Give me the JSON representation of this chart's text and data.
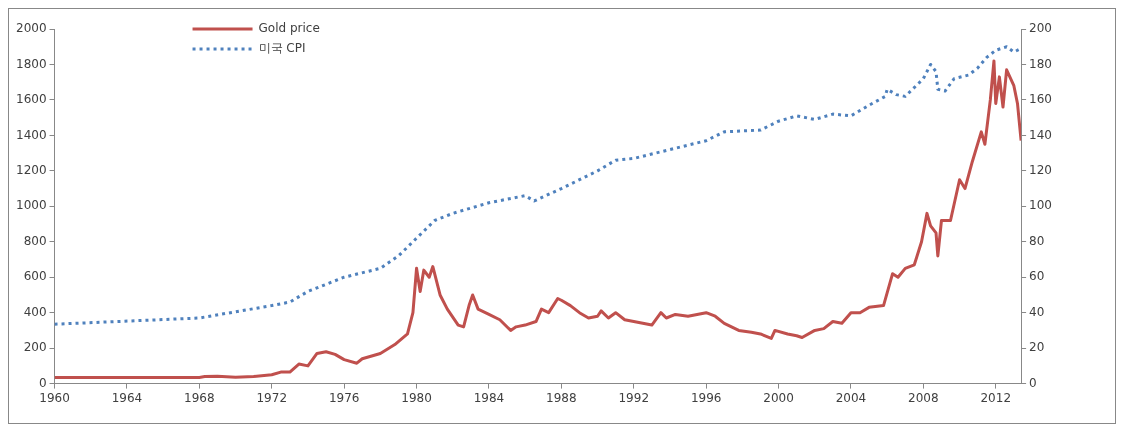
{
  "chart_data": {
    "type": "line",
    "xlim": [
      1960,
      2013.4
    ],
    "xticks": [
      1960,
      1964,
      1968,
      1972,
      1976,
      1980,
      1984,
      1988,
      1992,
      1996,
      2000,
      2004,
      2008,
      2012
    ],
    "ylim": [
      0,
      2000
    ],
    "yticks": [
      0,
      200,
      400,
      600,
      800,
      1000,
      1200,
      1400,
      1600,
      1800,
      2000
    ],
    "y2lim": [
      0,
      200
    ],
    "y2ticks": [
      0,
      20,
      40,
      60,
      80,
      100,
      120,
      140,
      160,
      180,
      200
    ],
    "grid": false,
    "legend": "top left",
    "marker": "none",
    "series": [
      {
        "name": "Gold price",
        "color": "#c0504d",
        "line_style": "solid",
        "x": [
          1960,
          1968,
          1968.3,
          1969,
          1970,
          1971,
          1972,
          1972.5,
          1973,
          1973.5,
          1974,
          1974.5,
          1975,
          1975.5,
          1976,
          1976.7,
          1977,
          1978,
          1978.8,
          1979.5,
          1979.8,
          1980.0,
          1980.2,
          1980.4,
          1980.7,
          1980.9,
          1981.3,
          1981.7,
          1982.3,
          1982.6,
          1982.9,
          1983.1,
          1983.4,
          1984,
          1984.6,
          1985.2,
          1985.5,
          1986,
          1986.6,
          1986.9,
          1987.3,
          1987.8,
          1988,
          1988.5,
          1989,
          1989.5,
          1990,
          1990.2,
          1990.6,
          1991,
          1991.5,
          1992,
          1992.5,
          1993,
          1993.5,
          1993.8,
          1994.3,
          1995,
          1996,
          1996.5,
          1997,
          1997.8,
          1998.5,
          1999,
          1999.6,
          1999.8,
          2000.5,
          2001,
          2001.3,
          2002,
          2002.5,
          2003,
          2003.5,
          2004,
          2004.5,
          2005,
          2005.8,
          2006.3,
          2006.6,
          2007,
          2007.5,
          2007.9,
          2008.2,
          2008.4,
          2008.7,
          2008.8,
          2009,
          2009.5,
          2010,
          2010.3,
          2010.7,
          2011.2,
          2011.4,
          2011.7,
          2011.9,
          2012.0,
          2012.2,
          2012.4,
          2012.6,
          2013.0,
          2013.2,
          2013.4
        ],
        "values": [
          35,
          35,
          40,
          42,
          36,
          40,
          50,
          65,
          65,
          110,
          100,
          170,
          180,
          165,
          135,
          115,
          140,
          170,
          220,
          280,
          400,
          650,
          520,
          640,
          600,
          660,
          500,
          420,
          330,
          320,
          440,
          500,
          420,
          390,
          360,
          300,
          320,
          330,
          350,
          420,
          400,
          480,
          470,
          440,
          400,
          370,
          380,
          410,
          370,
          400,
          360,
          350,
          340,
          330,
          400,
          370,
          390,
          380,
          400,
          380,
          340,
          300,
          290,
          280,
          255,
          300,
          280,
          270,
          260,
          300,
          310,
          350,
          340,
          400,
          400,
          430,
          440,
          620,
          600,
          650,
          670,
          800,
          960,
          890,
          850,
          720,
          920,
          920,
          1150,
          1100,
          1250,
          1420,
          1350,
          1600,
          1820,
          1580,
          1730,
          1560,
          1770,
          1680,
          1580,
          1370
        ]
      },
      {
        "name": "미국 CPI",
        "color": "#4f81bd",
        "line_style": "dotted",
        "axis": "y2",
        "x": [
          1960,
          1968,
          1972,
          1973,
          1974,
          1976,
          1978,
          1979,
          1980,
          1981,
          1982,
          1984,
          1986,
          1986.5,
          1988,
          1990,
          1991,
          1992,
          1994,
          1996,
          1997,
          1999,
          2000,
          2001,
          2002,
          2003,
          2004,
          2005,
          2005.9,
          2006,
          2006.5,
          2007,
          2008,
          2008.4,
          2008.7,
          2008.8,
          2009.2,
          2009.7,
          2010.5,
          2011,
          2011.5,
          2012.0,
          2012.6,
          2013.0,
          2013.4
        ],
        "values": [
          33.5,
          37,
          44,
          46,
          52,
          60,
          65,
          72,
          82,
          92,
          96,
          102,
          106,
          103,
          110,
          120,
          126,
          127,
          132,
          137,
          142,
          143,
          148,
          151,
          149,
          152,
          151,
          157,
          162,
          166,
          163,
          162,
          172,
          180,
          176,
          166,
          165,
          172,
          174,
          178,
          184,
          188,
          190,
          187,
          189
        ]
      }
    ]
  }
}
